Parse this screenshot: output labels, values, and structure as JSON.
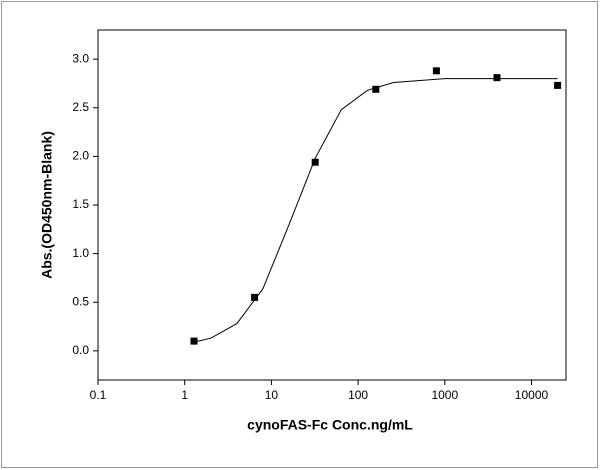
{
  "chart_data": {
    "type": "scatter",
    "x_label": "cynoFAS-Fc Conc.ng/mL",
    "y_label": "Abs.(OD450nm-Blank)",
    "log_x": true,
    "xlim": [
      0.1,
      25000
    ],
    "xticks": [
      0.1,
      1,
      10,
      100,
      1000,
      10000
    ],
    "ylim": [
      -0.3,
      3.3
    ],
    "yticks": [
      {
        "value": 0,
        "label": "0.0"
      },
      0.5,
      {
        "value": 1,
        "label": "1.0"
      },
      1.5,
      {
        "value": 2,
        "label": "2.0"
      },
      2.5,
      {
        "value": 3,
        "label": "3.0"
      }
    ],
    "series": [
      {
        "type": "scatter",
        "color": "#000000",
        "x": [
          1.28,
          6.4,
          32,
          160,
          800,
          4000,
          20000
        ],
        "values": [
          0.1,
          0.55,
          1.94,
          2.69,
          2.88,
          2.81,
          2.73
        ]
      },
      {
        "type": "line",
        "color": "#000000",
        "x": [
          1.28,
          2,
          4,
          8,
          16,
          32,
          64,
          128,
          256,
          1000,
          5000,
          20000
        ],
        "values": [
          0.09,
          0.13,
          0.28,
          0.64,
          1.3,
          1.98,
          2.48,
          2.68,
          2.76,
          2.8,
          2.8,
          2.8
        ]
      }
    ]
  }
}
